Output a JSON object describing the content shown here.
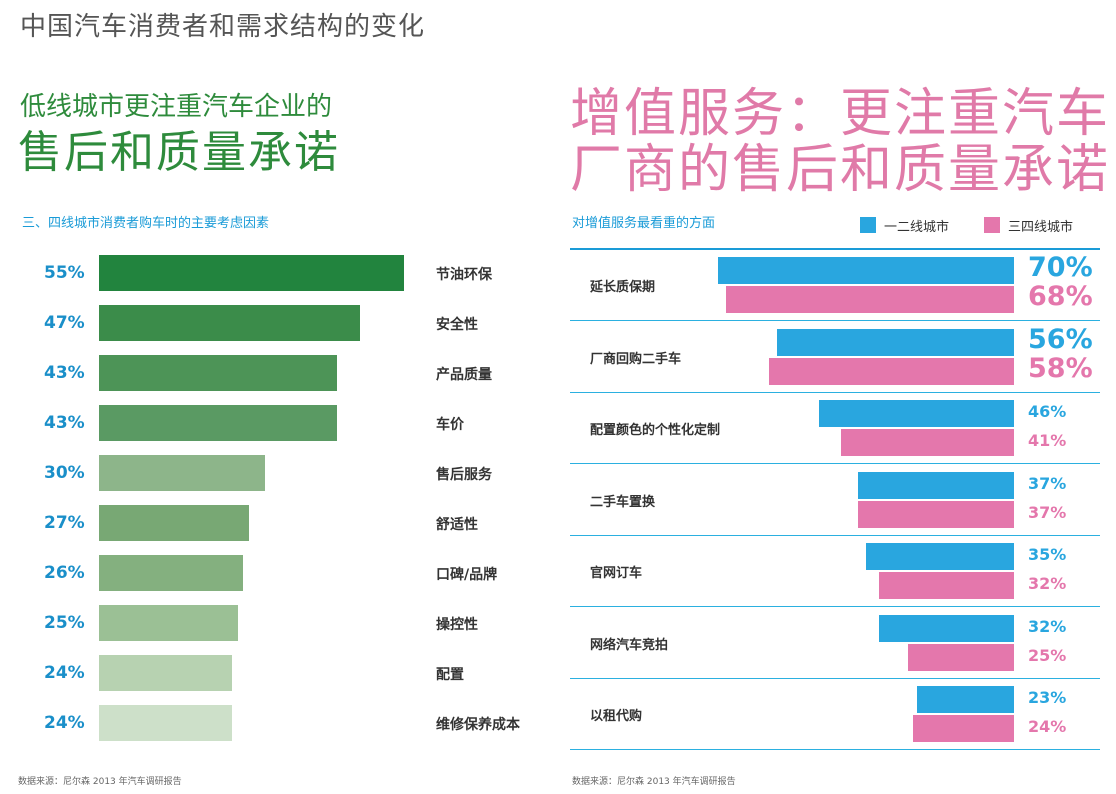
{
  "page_title": "中国汽车消费者和需求结构的变化",
  "left": {
    "heading_line1": "低线城市更注重汽车企业的",
    "heading_line2": "售后和质量承诺",
    "subtitle": "三、四线城市消费者购车时的主要考虑因素",
    "source": "数据来源：尼尔森 2013 年汽车调研报告"
  },
  "right": {
    "heading_line1": "增值服务：更注重汽车",
    "heading_line2": "厂商的售后和质量承诺",
    "subtitle": "对增值服务最看重的方面",
    "source": "数据来源：尼尔森 2013 年汽车调研报告",
    "legend": [
      "一二线城市",
      "三四线城市"
    ]
  },
  "colors": {
    "tier12": "#29a6df",
    "tier34": "#e477ac",
    "left_bar_shades": [
      "#22843e",
      "#3b8c4a",
      "#4d9457",
      "#5a9a63",
      "#8db58a",
      "#78a874",
      "#84b07f",
      "#9bc095",
      "#b7d2b1",
      "#cde0c9"
    ]
  },
  "chart_data": [
    {
      "type": "bar",
      "orientation": "horizontal",
      "title": "三、四线城市消费者购车时的主要考虑因素",
      "categories": [
        "节油环保",
        "安全性",
        "产品质量",
        "车价",
        "售后服务",
        "舒适性",
        "口碑/品牌",
        "操控性",
        "配置",
        "维修保养成本"
      ],
      "values": [
        55,
        47,
        43,
        43,
        30,
        27,
        26,
        25,
        24,
        24
      ],
      "value_labels": [
        "55%",
        "47%",
        "43%",
        "43%",
        "30%",
        "27%",
        "26%",
        "25%",
        "24%",
        "24%"
      ],
      "unit": "%"
    },
    {
      "type": "bar",
      "orientation": "horizontal",
      "title": "对增值服务最看重的方面",
      "categories": [
        "延长质保期",
        "厂商回购二手车",
        "配置颜色的个性化定制",
        "二手车置换",
        "官网订车",
        "网络汽车竞拍",
        "以租代购"
      ],
      "series": [
        {
          "name": "一二线城市",
          "values": [
            70,
            56,
            46,
            37,
            35,
            32,
            23
          ],
          "value_labels": [
            "70%",
            "56%",
            "46%",
            "37%",
            "35%",
            "32%",
            "23%"
          ]
        },
        {
          "name": "三四线城市",
          "values": [
            68,
            58,
            41,
            37,
            32,
            25,
            24
          ],
          "value_labels": [
            "68%",
            "58%",
            "41%",
            "37%",
            "32%",
            "25%",
            "24%"
          ]
        }
      ],
      "unit": "%"
    }
  ]
}
